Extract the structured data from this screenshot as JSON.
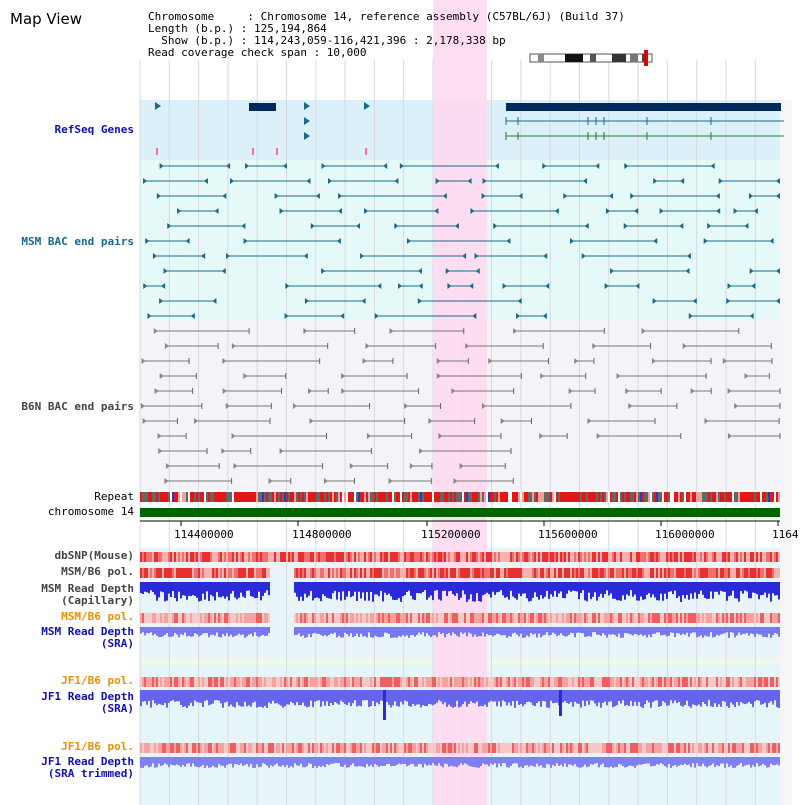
{
  "view": {
    "title": "Map View"
  },
  "info": {
    "line1": "Chromosome     : Chromosome 14, reference assembly (C57BL/6J) (Build 37)",
    "line2": "Length (b.p.) : 125,194,864",
    "line3": "  Show (b.p.) : 114,243,059-116,421,396 : 2,178,338 bp",
    "line4": "Read coverage check span : 10,000"
  },
  "tracks": {
    "refseq": "RefSeq Genes",
    "msm_bac": "MSM BAC end pairs",
    "b6n_bac": "B6N BAC end pairs",
    "repeat": "Repeat",
    "chromosome": "chromosome 14",
    "dbsnp": "dbSNP(Mouse)",
    "msm_b6_pol": "MSM/B6 pol.",
    "msm_depth_cap_1": "MSM Read Depth",
    "msm_depth_cap_2": "(Capillary)",
    "msm_b6_pol_sra": "MSM/B6 pol.",
    "msm_depth_sra_1": "MSM Read Depth",
    "msm_depth_sra_2": "(SRA)",
    "jf1_b6_pol": "JF1/B6 pol.",
    "jf1_depth_1": "JF1 Read Depth",
    "jf1_depth_2": "(SRA)",
    "jf1_b6_pol_trim": "JF1/B6 pol.",
    "jf1_trim_1": "JF1 Read Depth",
    "jf1_trim_2": "(SRA trimmed)"
  },
  "axis": {
    "ticks": [
      "114400000",
      "114800000",
      "115200000",
      "115600000",
      "116000000",
      "1164"
    ]
  },
  "colors": {
    "refseq_bg": "#dcf0fa",
    "bac_bg": "#e6f9f9",
    "highlight": "#ffd8f0",
    "chromosome": "#006400",
    "depth_blue": "#2a2ad8",
    "pol_red": "#e03030",
    "gene_navy": "#002a5c",
    "bac_teal": "#1a6a8a",
    "b6n_gray": "#777777"
  }
}
